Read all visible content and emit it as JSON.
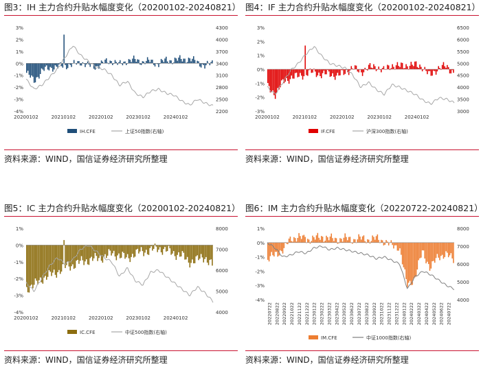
{
  "panels": [
    {
      "id": "p3",
      "title": "图3：IH 主力合约升贴水幅度变化（20200102-20240821）",
      "source": "资料来源：WIND，国信证券经济研究所整理",
      "bar_color": "#1f4e79",
      "line_color": "#a6a6a6",
      "legend": {
        "bar": "IH.CFE",
        "line": "上证50指数(右轴)"
      },
      "chart_data": {
        "type": "bar+line",
        "left_axis": {
          "min": -4,
          "max": 3,
          "ticks": [
            3,
            2,
            1,
            0,
            -1,
            -2,
            -3,
            -4
          ],
          "unit": "%"
        },
        "right_axis": {
          "min": 2200,
          "max": 4300,
          "ticks": [
            4300,
            4000,
            3700,
            3400,
            3100,
            2800,
            2500,
            2200
          ]
        },
        "x_ticks": [
          "20200102",
          "20210102",
          "20220102",
          "20230102",
          "20240102"
        ],
        "bar_series_approx": [
          -0.8,
          -1.5,
          -0.6,
          -0.4,
          -0.3,
          -0.2,
          -0.1,
          0.1,
          -0.2,
          -0.3,
          0.1,
          0.2,
          -0.1,
          0.2,
          0.3,
          0.1,
          0.2,
          -0.1,
          0.3,
          0.2,
          0.4,
          0.3,
          0.2,
          -0.3,
          0.1
        ],
        "bar_spike": 2.4,
        "line_series_approx": [
          3000,
          2750,
          2850,
          3050,
          3250,
          3550,
          3850,
          3600,
          3450,
          3300,
          3250,
          3100,
          2850,
          2950,
          2650,
          2550,
          2700,
          2750,
          2650,
          2600,
          2450,
          2350,
          2500,
          2400,
          2330
        ]
      }
    },
    {
      "id": "p4",
      "title": "图4：IF 主力合约升贴水幅度变化（20200102-20240821）",
      "source": "资料来源：WIND，国信证券经济研究所整理",
      "bar_color": "#e00000",
      "line_color": "#a6a6a6",
      "legend": {
        "bar": "IF.CFE",
        "line": "沪深300指数(右轴)"
      },
      "chart_data": {
        "type": "bar+line",
        "left_axis": {
          "min": -3,
          "max": 3,
          "ticks": [
            3,
            2,
            1,
            0,
            -1,
            -2,
            -3
          ],
          "unit": "%"
        },
        "right_axis": {
          "min": 3000,
          "max": 6500,
          "ticks": [
            6500,
            6000,
            5500,
            5000,
            4500,
            4000,
            3500,
            3000
          ]
        },
        "x_ticks": [
          "20200102",
          "20210102",
          "20220102",
          "20230102",
          "20240102"
        ],
        "bar_series_approx": [
          -1.3,
          -1.8,
          -0.9,
          -0.6,
          -0.5,
          -0.3,
          -0.2,
          -0.4,
          -0.3,
          -0.5,
          -0.2,
          0.1,
          -0.2,
          0.1,
          0.2,
          -0.1,
          0.3,
          0.2,
          0.3,
          0.3,
          0.2,
          -0.5,
          0.1,
          0.2,
          -0.2
        ],
        "bar_spike": 1.7,
        "line_series_approx": [
          4000,
          3700,
          4200,
          4700,
          5000,
          5400,
          5700,
          5300,
          5000,
          4900,
          4800,
          4500,
          4000,
          4200,
          3900,
          3700,
          4100,
          4000,
          3850,
          3700,
          3450,
          3300,
          3550,
          3500,
          3350
        ]
      }
    },
    {
      "id": "p5",
      "title": "图5：IC 主力合约升贴水幅度变化（20200102-20240821）",
      "source": "资料来源：WIND，国信证券经济研究所整理",
      "bar_color": "#8c6d0f",
      "line_color": "#a6a6a6",
      "legend": {
        "bar": "IC.CFE",
        "line": "中证500指数(右轴)"
      },
      "chart_data": {
        "type": "bar+line",
        "left_axis": {
          "min": -4,
          "max": 1,
          "ticks": [
            1,
            0,
            -1,
            -2,
            -3,
            -4
          ],
          "unit": "%"
        },
        "right_axis": {
          "min": 4000,
          "max": 8000,
          "ticks": [
            8000,
            7000,
            6000,
            5000,
            4000
          ]
        },
        "x_ticks": [
          "20200102",
          "20210102",
          "20220102",
          "20230102",
          "20240102"
        ],
        "bar_series_approx": [
          -2.6,
          -2.4,
          -2.0,
          -1.8,
          -1.6,
          -1.3,
          -1.2,
          -1.0,
          -0.9,
          -0.8,
          -0.7,
          -0.5,
          -0.6,
          -0.8,
          -0.5,
          -0.4,
          -0.3,
          -0.2,
          -0.3,
          -0.5,
          -0.6,
          -1.0,
          -0.9,
          -0.7,
          -1.2
        ],
        "bar_spike": 0.3,
        "line_series_approx": [
          5400,
          5000,
          5600,
          6200,
          6600,
          6300,
          6500,
          7000,
          7200,
          6900,
          6600,
          6400,
          5700,
          6100,
          5500,
          5300,
          5900,
          6000,
          5700,
          5400,
          5100,
          4800,
          5200,
          4900,
          4500
        ]
      }
    },
    {
      "id": "p6",
      "title": "图6：IM 主力合约升贴水幅度变化（20220722-20240821）",
      "source": "资料来源：WIND，国信证券经济研究所整理",
      "bar_color": "#ed7d31",
      "line_color": "#7f7f7f",
      "legend": {
        "bar": "IM.CFE",
        "line": "中证1000指数(右轴)"
      },
      "chart_data": {
        "type": "bar+line",
        "left_axis": {
          "min": -4,
          "max": 1,
          "ticks": [
            1,
            0,
            -1,
            -2,
            -3,
            -4
          ],
          "unit": "%"
        },
        "right_axis": {
          "min": 4000,
          "max": 8000,
          "ticks": [
            8000,
            7000,
            6000,
            5000,
            4000
          ]
        },
        "x_ticks": [
          "20220722",
          "20220822",
          "20220922",
          "20221022",
          "20221122",
          "20221222",
          "20230122",
          "20230222",
          "20230322",
          "20230422",
          "20230522",
          "20230622",
          "20230722",
          "20230822",
          "20230922",
          "20231022",
          "20231122",
          "20231222",
          "20240122",
          "20240222",
          "20240322",
          "20240422",
          "20240522",
          "20240622",
          "20240722"
        ],
        "bar_series_approx": [
          -1.2,
          -0.8,
          -0.5,
          0.3,
          0.4,
          0.2,
          0.3,
          0.4,
          0.3,
          0.2,
          0.3,
          0.2,
          0.3,
          0.2,
          0.3,
          0.1,
          -0.2,
          -0.3,
          -3.0,
          -2.5,
          -0.6,
          -1.8,
          -1.0,
          -0.8,
          -1.2
        ],
        "bar_spike": 0.4,
        "line_series_approx": [
          7200,
          6900,
          6400,
          6500,
          6700,
          6600,
          6900,
          7000,
          6800,
          6900,
          6800,
          6700,
          6600,
          6500,
          6300,
          6400,
          6200,
          6000,
          4600,
          5300,
          5600,
          5400,
          5100,
          4800,
          4600
        ]
      }
    }
  ]
}
